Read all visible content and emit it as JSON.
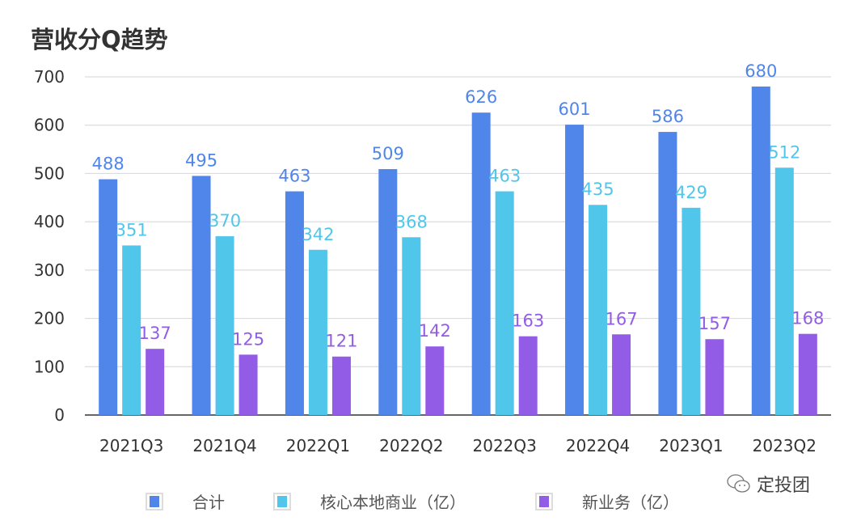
{
  "chart_data": {
    "type": "bar",
    "title": "营收分Q趋势",
    "categories": [
      "2021Q3",
      "2021Q4",
      "2022Q1",
      "2022Q2",
      "2022Q3",
      "2022Q4",
      "2023Q1",
      "2023Q2"
    ],
    "series": [
      {
        "name": "合计",
        "color": "#5085EA",
        "label_color": "#5085EA",
        "values": [
          488,
          495,
          463,
          509,
          626,
          601,
          586,
          680
        ]
      },
      {
        "name": "核心本地商业（亿）",
        "color": "#4FC6EA",
        "label_color": "#4FC6EA",
        "values": [
          351,
          370,
          342,
          368,
          463,
          435,
          429,
          512
        ]
      },
      {
        "name": "新业务（亿）",
        "color": "#935CE6",
        "label_color": "#935CE6",
        "values": [
          137,
          125,
          121,
          142,
          163,
          167,
          157,
          168
        ]
      }
    ],
    "ylim": [
      0,
      700
    ],
    "yticks": [
      0,
      100,
      200,
      300,
      400,
      500,
      600,
      700
    ],
    "grid": true,
    "legend_position": "bottom"
  },
  "watermark": {
    "text": "定投团",
    "icon": "wechat-icon"
  }
}
